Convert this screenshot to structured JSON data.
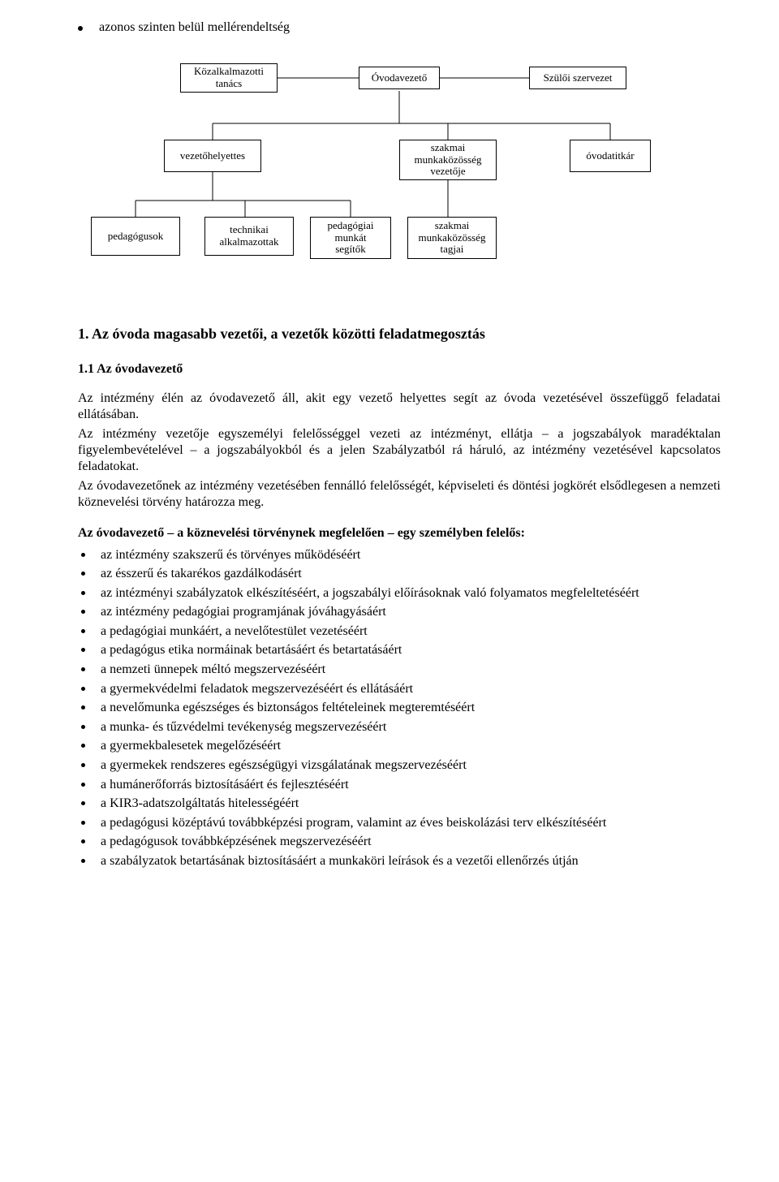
{
  "top_bullet": "azonos szinten belül mellérendeltség",
  "org": {
    "row1": {
      "n1": "Közalkalmazotti\ntanács",
      "n2": "Óvodavezető",
      "n3": "Szülői szervezet"
    },
    "row2": {
      "n1": "vezetőhelyettes",
      "n2": "szakmai\nmunkaközösség\nvezetője",
      "n3": "óvodatitkár"
    },
    "row3": {
      "n1": "pedagógusok",
      "n2": "technikai\nalkalmazottak",
      "n3": "pedagógiai\nmunkát\nsegítők",
      "n4": "szakmai\nmunkaközösség\ntagjai"
    },
    "line_color": "#000000"
  },
  "section_heading": "1. Az óvoda magasabb vezetői, a vezetők közötti feladatmegosztás",
  "subsection_heading": "1.1 Az óvodavezető",
  "paragraphs": {
    "p1": "Az intézmény élén az óvodavezető áll, akit egy vezető helyettes segít az óvoda vezetésével összefüggő feladatai ellátásában.",
    "p2": "Az intézmény vezetője egyszemélyi felelősséggel vezeti az intézményt, ellátja – a jogszabályok maradéktalan figyelembevételével – a jogszabályokból és a jelen Szabályzatból rá háruló, az intézmény vezetésével kapcsolatos feladatokat.",
    "p3": "Az óvodavezetőnek az intézmény vezetésében fennálló felelősségét, képviseleti és döntési jogkörét elsődlegesen a nemzeti köznevelési törvény határozza meg."
  },
  "bold_intro": "Az óvodavezető – a köznevelési törvénynek megfelelően – egy személyben felelős:",
  "bullets": [
    "az intézmény szakszerű és törvényes működéséért",
    "az ésszerű és takarékos gazdálkodásért",
    "az intézményi szabályzatok elkészítéséért, a jogszabályi előírásoknak való folyamatos megfeleltetéséért",
    "az intézmény pedagógiai programjának jóváhagyásáért",
    "a pedagógiai munkáért, a nevelőtestület vezetéséért",
    "a pedagógus etika normáinak betartásáért és betartatásáért",
    "a nemzeti ünnepek méltó megszervezéséért",
    "a gyermekvédelmi feladatok megszervezéséért és ellátásáért",
    "a nevelőmunka egészséges és biztonságos feltételeinek megteremtéséért",
    "a munka- és tűzvédelmi tevékenység megszervezéséért",
    "a gyermekbalesetek megelőzéséért",
    "a gyermekek rendszeres egészségügyi vizsgálatának megszervezéséért",
    "a humánerőforrás biztosításáért és fejlesztéséért",
    "a KIR3-adatszolgáltatás hitelességéért",
    "a pedagógusi középtávú továbbképzési program, valamint az éves beiskolázási terv elkészítéséért",
    "a pedagógusok továbbképzésének megszervezéséért",
    "a szabályzatok betartásának biztosításáért a munkaköri leírások és a vezetői ellenőrzés útján"
  ]
}
